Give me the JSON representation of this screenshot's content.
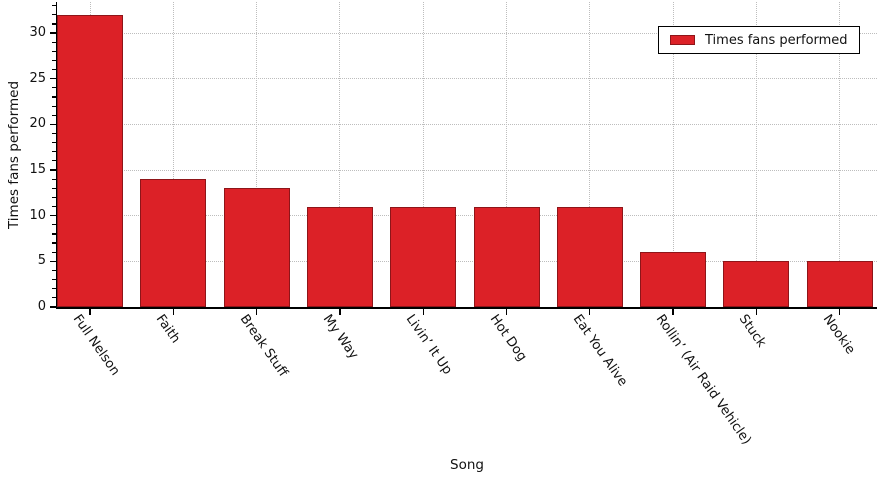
{
  "chart_data": {
    "type": "bar",
    "title": "",
    "xlabel": "Song",
    "ylabel": "Times fans performed",
    "categories": [
      "Full Nelson",
      "Faith",
      "Break Stuff",
      "My Way",
      "Livin’ It Up",
      "Hot Dog",
      "Eat You Alive",
      "Rollin’ (Air Raid Vehicle)",
      "Stuck",
      "Nookie"
    ],
    "values": [
      32,
      14,
      13,
      11,
      11,
      11,
      11,
      6,
      5,
      5
    ],
    "series_name": "Times fans performed",
    "y_ticks": [
      0,
      5,
      10,
      15,
      20,
      25,
      30
    ],
    "ylim": [
      0,
      33.4
    ],
    "grid": true,
    "grid_style": "dotted",
    "legend_position": "upper right",
    "bar_color": "#dc2127",
    "bar_edge_color": "#8e1519",
    "grid_color": "#bdbdbd",
    "axis_color": "#000000"
  },
  "legend": {
    "label": "Times fans performed"
  }
}
